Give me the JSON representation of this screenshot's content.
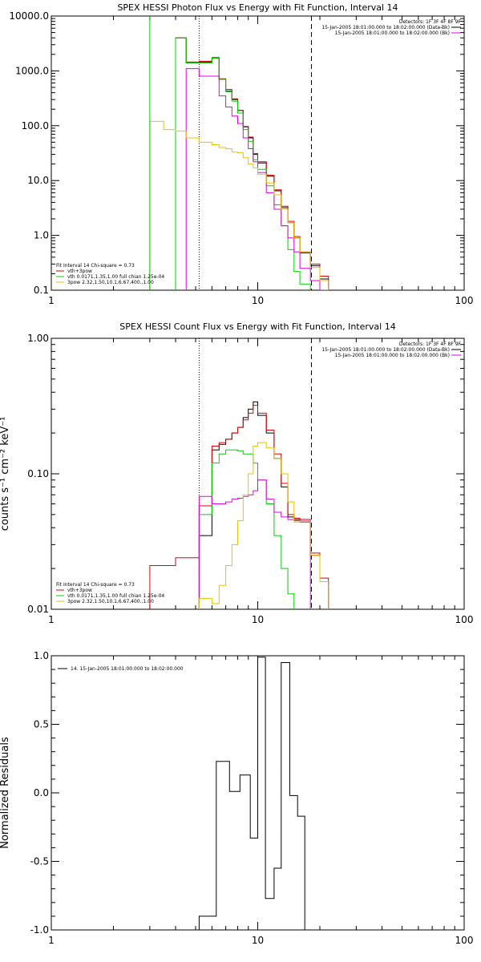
{
  "chart_data": [
    {
      "type": "line",
      "title": "SPEX HESSI Photon Flux vs Energy with Fit Function, Interval 14",
      "xlabel": "",
      "ylabel": "",
      "xscale": "log",
      "yscale": "log",
      "xlim": [
        1,
        100
      ],
      "ylim": [
        0.1,
        10000
      ],
      "xtick_labels": [
        "1",
        "10",
        "100"
      ],
      "ytick_labels": [
        "0.1",
        "1.0",
        "10.0",
        "100.0",
        "1000.0",
        "10000.0"
      ],
      "legend_right": {
        "position": "top-right",
        "lines": [
          "Detectors: 1F 3F 4F 8F 9F",
          "15-Jan-2005 18:01:00.000 to 18:02:00.000 (Data-Bk)",
          "15-Jan-2005 18:01:00.000 to 18:02:00.000 (Bk)"
        ]
      },
      "legend_left": {
        "position": "bottom-left",
        "lines": [
          "Fit Interval 14   Chi-square = 0.73",
          "vth+3pow",
          "vth 0.0171,1.35,1.00  full chian 1.25e-04",
          "3pow 2.32,1.50,10.1,6.67,400.,1.00"
        ]
      },
      "vlines": [
        {
          "x": 5.2,
          "style": "dotted"
        },
        {
          "x": 18.2,
          "style": "dashed"
        }
      ],
      "edges": [
        3.0,
        3.5,
        4.0,
        4.5,
        5.2,
        6.0,
        6.5,
        7.0,
        7.5,
        8.0,
        8.5,
        9.0,
        9.5,
        10.0,
        11.0,
        12.0,
        13.0,
        14.0,
        15.0,
        16.0,
        18.0,
        20.0,
        22.0
      ],
      "series": [
        {
          "color": "#000000",
          "values": [
            null,
            null,
            4000,
            1400,
            1450,
            1700,
            700,
            430,
            300,
            190,
            95,
            60,
            30,
            21,
            12,
            6.5,
            3.2,
            1.7,
            0.9,
            0.48,
            0.28,
            0.16
          ]
        },
        {
          "color": "#e00000",
          "values": [
            null,
            null,
            4000,
            1450,
            1500,
            1750,
            720,
            460,
            310,
            190,
            97,
            62,
            31,
            22,
            12.5,
            6.8,
            3.4,
            1.8,
            0.95,
            0.5,
            0.3,
            0.18
          ]
        },
        {
          "color": "#00d000",
          "values": [
            null,
            null,
            4000,
            1400,
            1400,
            1700,
            700,
            420,
            280,
            170,
            85,
            52,
            24,
            16,
            8,
            3.6,
            1.5,
            0.55,
            0.22,
            0.13
          ]
        },
        {
          "color": "#e000e0",
          "values": [
            null,
            null,
            null,
            1100,
            800,
            800,
            350,
            220,
            150,
            110,
            60,
            38,
            22,
            14,
            6,
            3.0,
            1.5,
            0.9,
            0.5,
            0.25,
            0.15,
            0.1
          ]
        },
        {
          "color": "#e8c000",
          "values": [
            120,
            85,
            80,
            60,
            50,
            45,
            40,
            38,
            33,
            32,
            26,
            20,
            17,
            13,
            9,
            5.5,
            3.0,
            1.7,
            0.9,
            0.5,
            0.26,
            0.15
          ]
        }
      ],
      "green_rise_x": 3.0
    },
    {
      "type": "line",
      "title": "SPEX HESSI Count Flux vs Energy with Fit Function, Interval 14",
      "xlabel": "",
      "ylabel": "counts s⁻¹ cm⁻² keV⁻¹",
      "xscale": "log",
      "yscale": "log",
      "xlim": [
        1,
        100
      ],
      "ylim": [
        0.01,
        1.0
      ],
      "xtick_labels": [
        "1",
        "10",
        "100"
      ],
      "ytick_labels": [
        "0.01",
        "0.10",
        "1.00"
      ],
      "legend_right": {
        "position": "top-right",
        "lines": [
          "Detectors: 1F 3F 4F 8F 9F",
          "15-Jan-2005 18:01:00.000 to 18:02:00.000 (Data-Bk)",
          "15-Jan-2005 18:01:00.000 to 18:02:00.000 (Bk)"
        ]
      },
      "legend_left": {
        "position": "bottom-left",
        "lines": [
          "Fit Interval 14   Chi-square = 0.73",
          "vth+3pow",
          "vth 0.0171,1.35,1.00  full chian 1.25e-04",
          "3pow 2.32,1.50,10.1,6.67,400.,1.00"
        ]
      },
      "vlines": [
        {
          "x": 5.2,
          "style": "dotted"
        },
        {
          "x": 18.2,
          "style": "dashed"
        }
      ],
      "edges": [
        3.0,
        4.0,
        5.2,
        6.0,
        6.5,
        7.0,
        7.5,
        8.0,
        8.5,
        9.0,
        9.5,
        10.0,
        11.0,
        12.0,
        13.0,
        14.0,
        15.0,
        16.0,
        18.0,
        20.0,
        22.0
      ],
      "series": [
        {
          "color": "#000000",
          "values": [
            null,
            null,
            0.035,
            0.15,
            0.165,
            0.18,
            0.2,
            0.22,
            0.26,
            0.3,
            0.34,
            0.27,
            0.2,
            0.13,
            0.08,
            0.048,
            0.046,
            0.045,
            0.025,
            0.016
          ]
        },
        {
          "color": "#e00000",
          "values": [
            0.021,
            0.024,
            0.058,
            0.16,
            0.17,
            0.18,
            0.2,
            0.22,
            0.25,
            0.28,
            0.32,
            0.28,
            0.21,
            0.14,
            0.085,
            0.05,
            0.047,
            0.046,
            0.026,
            0.017
          ]
        },
        {
          "color": "#00d000",
          "values": [
            null,
            null,
            0.05,
            0.12,
            0.14,
            0.15,
            0.15,
            0.148,
            0.14,
            0.14,
            0.12,
            0.09,
            0.06,
            0.035,
            0.02,
            0.013
          ]
        },
        {
          "color": "#e000e0",
          "values": [
            null,
            null,
            0.068,
            0.06,
            0.06,
            0.062,
            0.065,
            0.066,
            0.068,
            0.07,
            0.075,
            0.09,
            0.065,
            0.052,
            0.048,
            0.046,
            0.045,
            0.044
          ]
        },
        {
          "color": "#e8c000",
          "values": [
            null,
            null,
            0.012,
            0.011,
            0.015,
            0.021,
            0.03,
            0.045,
            0.07,
            0.1,
            0.16,
            0.17,
            0.155,
            0.13,
            0.1,
            0.062,
            0.044,
            0.045,
            0.025,
            0.016
          ]
        }
      ]
    },
    {
      "type": "line",
      "title": "",
      "xlabel": "",
      "ylabel": "Normalized Residuals",
      "xscale": "log",
      "yscale": "linear",
      "xlim": [
        1,
        100
      ],
      "ylim": [
        -1.0,
        1.0
      ],
      "xtick_labels": [
        "1",
        "10",
        "100"
      ],
      "ytick_labels": [
        "-1.0",
        "-0.5",
        "0.0",
        "0.5",
        "1.0"
      ],
      "legend_left": {
        "position": "top-left",
        "lines": [
          "14. 15-Jan-2005 18:01:00.000 to 18:02:00.000"
        ]
      },
      "edges": [
        5.2,
        6.3,
        7.3,
        8.2,
        9.2,
        10.0,
        10.9,
        12.0,
        13.0,
        14.3,
        15.6,
        16.9,
        18.2
      ],
      "series": [
        {
          "color": "#000000",
          "values": [
            -0.9,
            0.23,
            0.01,
            0.13,
            -0.33,
            0.99,
            -0.77,
            -0.55,
            0.95,
            -0.02,
            -0.17,
            -1.05
          ]
        }
      ]
    }
  ]
}
